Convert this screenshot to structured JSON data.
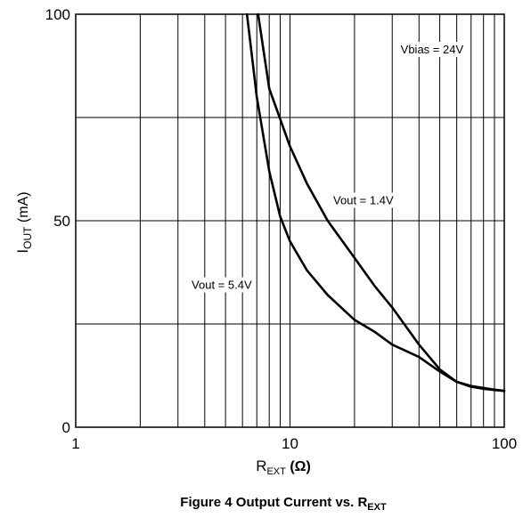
{
  "chart_data": {
    "type": "line",
    "x_scale": "log",
    "xlim": [
      1,
      100
    ],
    "ylim": [
      0,
      100
    ],
    "x_ticks": [
      1,
      10,
      100
    ],
    "x_tick_labels": [
      "1",
      "10",
      "100"
    ],
    "y_ticks": [
      0,
      50,
      100
    ],
    "y_tick_labels": [
      "0",
      "50",
      "100"
    ],
    "y_minor_grid_step": 25,
    "grid": true,
    "xlabel": {
      "main": "R",
      "sub": "EXT",
      "tail": " (Ω)"
    },
    "ylabel": {
      "main": "I",
      "sub": "OUT",
      "tail": " (mA)"
    },
    "caption": {
      "main": "Figure 4 Output Current vs. R",
      "sub": "EXT"
    },
    "annotations": [
      {
        "text": "Vbias = 24V",
        "x": 46,
        "y": 90.5
      },
      {
        "text": "Vout = 1.4V",
        "x": 22,
        "y": 54
      },
      {
        "text": "Vout = 5.4V",
        "x": 4.8,
        "y": 33.5
      }
    ],
    "series": [
      {
        "label_ref": "Vout = 1.4V",
        "x": [
          7.1,
          8,
          10,
          12,
          15,
          20,
          25,
          30,
          40,
          50,
          60,
          70,
          80,
          90,
          100
        ],
        "y": [
          100,
          82,
          68,
          59,
          50,
          41,
          34,
          29,
          20,
          14,
          11,
          9.8,
          9.3,
          9.0,
          8.8
        ]
      },
      {
        "label_ref": "Vout = 5.4V",
        "x": [
          6.3,
          7,
          8,
          9,
          10,
          12,
          15,
          20,
          25,
          30,
          40,
          50,
          60,
          70,
          80,
          90,
          100
        ],
        "y": [
          100,
          80,
          62,
          51,
          45,
          38,
          32,
          26,
          23,
          20,
          17,
          13.5,
          11,
          10,
          9.5,
          9.1,
          8.8
        ]
      }
    ],
    "colors": {
      "line": "#000000",
      "grid": "#000000",
      "background": "#ffffff"
    }
  }
}
